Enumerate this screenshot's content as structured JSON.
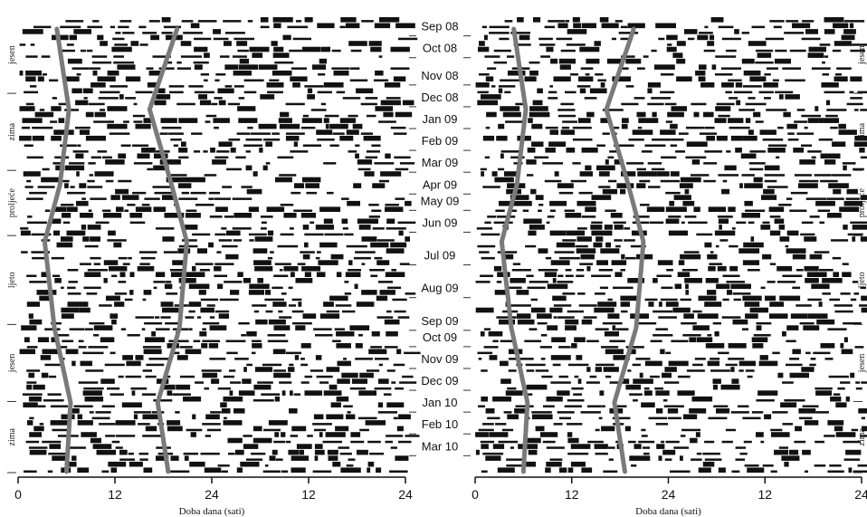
{
  "chart_data": {
    "type": "actogram",
    "x_ticks": [
      "0",
      "12",
      "24",
      "12",
      "24"
    ],
    "xlabel": "Doba dana (sati)",
    "xlim_hours": [
      0,
      24
    ],
    "rows": 77,
    "months": [
      {
        "label": "Sep 08",
        "row": 1
      },
      {
        "label": "Oct 08",
        "row": 5
      },
      {
        "label": "Nov 08",
        "row": 10
      },
      {
        "label": "Dec 08",
        "row": 14
      },
      {
        "label": "Jan 09",
        "row": 18
      },
      {
        "label": "Feb 09",
        "row": 22
      },
      {
        "label": "Mar 09",
        "row": 26
      },
      {
        "label": "Apr 09",
        "row": 30
      },
      {
        "label": "May 09",
        "row": 33
      },
      {
        "label": "Jun 09",
        "row": 37
      },
      {
        "label": "Jul 09",
        "row": 43
      },
      {
        "label": "Aug 09",
        "row": 49
      },
      {
        "label": "Sep 09",
        "row": 55
      },
      {
        "label": "Oct 09",
        "row": 58
      },
      {
        "label": "Nov 09",
        "row": 62
      },
      {
        "label": "Dec 09",
        "row": 66
      },
      {
        "label": "Jan 10",
        "row": 70
      },
      {
        "label": "Feb 10",
        "row": 74
      },
      {
        "label": "Mar 10",
        "row": 78
      }
    ],
    "seasons_left": [
      {
        "label": "jesen",
        "row_start": 0,
        "row_end": 13
      },
      {
        "label": "zima",
        "row_start": 13,
        "row_end": 26
      },
      {
        "label": "proljeće",
        "row_start": 26,
        "row_end": 37
      },
      {
        "label": "ljeto",
        "row_start": 37,
        "row_end": 52
      },
      {
        "label": "jesen",
        "row_start": 52,
        "row_end": 65
      },
      {
        "label": "zima",
        "row_start": 65,
        "row_end": 77
      }
    ],
    "seasons_right": [
      {
        "label": "jesen",
        "row_start": 0,
        "row_end": 13
      },
      {
        "label": "zima",
        "row_start": 13,
        "row_end": 26
      },
      {
        "label": "proljeće",
        "row_start": 26,
        "row_end": 37
      },
      {
        "label": "ljeto",
        "row_start": 37,
        "row_end": 52
      },
      {
        "label": "jesen",
        "row_start": 52,
        "row_end": 65
      },
      {
        "label": "zima",
        "row_start": 65,
        "row_end": 77
      }
    ],
    "series": [
      {
        "panel": "left",
        "sunrise_hours": [
          [
            0,
            4.8
          ],
          [
            14,
            6.3
          ],
          [
            27,
            5.2
          ],
          [
            37,
            3.3
          ],
          [
            52,
            4.5
          ],
          [
            65,
            6.5
          ],
          [
            77,
            6.0
          ]
        ],
        "sunset_hours": [
          [
            0,
            19.7
          ],
          [
            14,
            16.3
          ],
          [
            27,
            19.0
          ],
          [
            37,
            20.9
          ],
          [
            52,
            20.0
          ],
          [
            65,
            17.3
          ],
          [
            77,
            18.6
          ]
        ]
      },
      {
        "panel": "right",
        "sunrise_hours": [
          [
            0,
            4.8
          ],
          [
            14,
            6.3
          ],
          [
            27,
            5.2
          ],
          [
            37,
            3.3
          ],
          [
            52,
            4.5
          ],
          [
            65,
            6.5
          ],
          [
            77,
            6.0
          ]
        ],
        "sunset_hours": [
          [
            0,
            19.7
          ],
          [
            14,
            16.3
          ],
          [
            27,
            19.0
          ],
          [
            37,
            20.9
          ],
          [
            52,
            20.0
          ],
          [
            65,
            17.3
          ],
          [
            77,
            18.6
          ]
        ]
      }
    ],
    "colors": {
      "activity": "#111111",
      "twilight_line": "#7a7a7a",
      "axis": "#111111"
    }
  }
}
